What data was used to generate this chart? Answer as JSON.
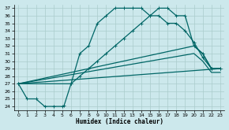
{
  "xlabel": "Humidex (Indice chaleur)",
  "xlim": [
    -0.5,
    23.5
  ],
  "ylim": [
    23.5,
    37.5
  ],
  "xticks": [
    0,
    1,
    2,
    3,
    4,
    5,
    6,
    7,
    8,
    9,
    10,
    11,
    12,
    13,
    14,
    15,
    16,
    17,
    18,
    19,
    20,
    21,
    22,
    23
  ],
  "yticks": [
    24,
    25,
    26,
    27,
    28,
    29,
    30,
    31,
    32,
    33,
    34,
    35,
    36,
    37
  ],
  "bg_color": "#cce8ec",
  "line_color": "#006666",
  "grid_color": "#aacccc",
  "curve1_x": [
    0,
    1,
    2,
    3,
    4,
    5,
    5.2,
    6,
    7,
    8,
    9,
    10,
    11,
    12,
    13,
    14,
    15,
    16,
    17,
    18,
    19,
    20,
    21,
    22,
    23
  ],
  "curve1_y": [
    27,
    25,
    25,
    24,
    24,
    24,
    24.1,
    27,
    31,
    32,
    35,
    36,
    37,
    37,
    37,
    37,
    36,
    36,
    35,
    35,
    34,
    32.5,
    30.5,
    29,
    29
  ],
  "curve2_x": [
    0,
    6,
    7,
    8,
    9,
    10,
    11,
    12,
    13,
    14,
    15,
    16,
    17,
    18,
    19,
    20,
    21,
    22,
    23
  ],
  "curve2_y": [
    27,
    27,
    28,
    29,
    30,
    31,
    32,
    33,
    34,
    35,
    36,
    37,
    37,
    36,
    36,
    32,
    31,
    29,
    29
  ],
  "curve3_x": [
    0,
    23
  ],
  "curve3_y": [
    27,
    29
  ],
  "curve4_x": [
    0,
    20,
    21,
    22,
    23
  ],
  "curve4_y": [
    27,
    32,
    31,
    29,
    29
  ],
  "curve5_x": [
    0,
    20,
    21,
    22,
    23
  ],
  "curve5_y": [
    27,
    31,
    30,
    28.5,
    28.5
  ]
}
